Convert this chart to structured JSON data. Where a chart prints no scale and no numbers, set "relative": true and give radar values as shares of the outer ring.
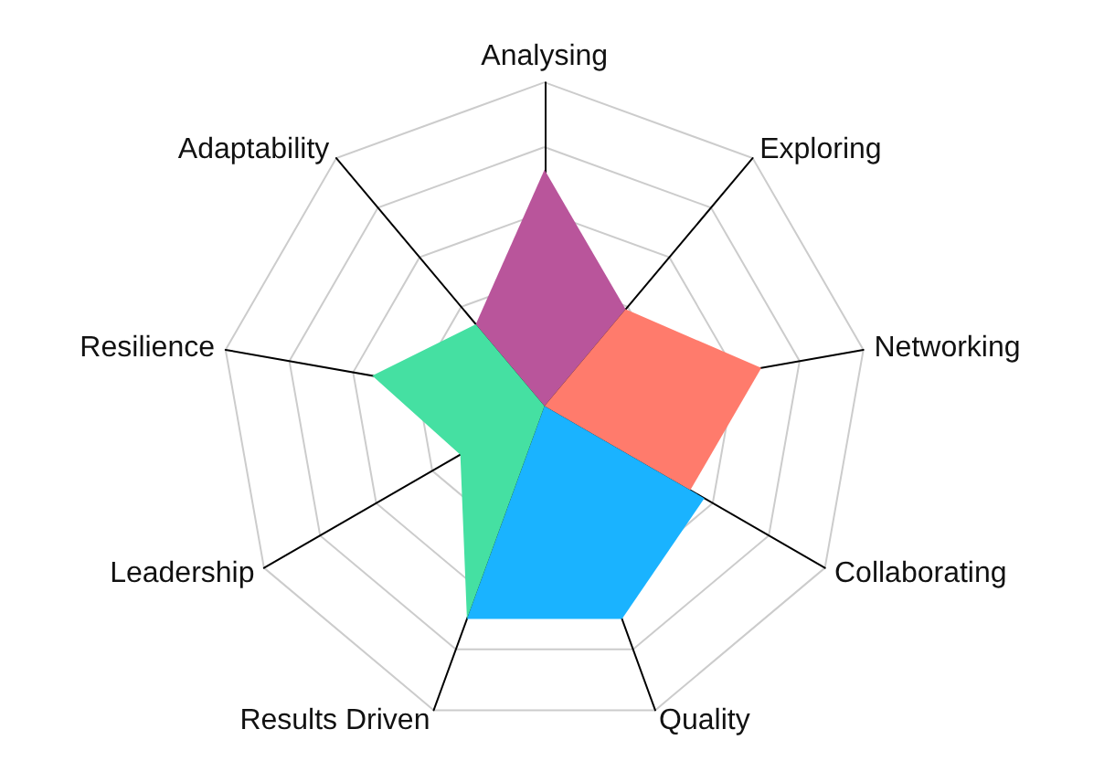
{
  "chart_data": {
    "type": "radar",
    "relative": true,
    "categories": [
      "Analysing",
      "Exploring",
      "Networking",
      "Collaborating",
      "Quality",
      "Results Driven",
      "Leadership",
      "Resilience",
      "Adaptability"
    ],
    "series": [
      {
        "color": "#b9559b",
        "values": [
          0.73,
          0.39,
          0,
          0,
          0,
          0,
          0,
          0,
          0.33
        ]
      },
      {
        "color": "#ff7b6c",
        "values": [
          0,
          0.39,
          0.68,
          0.52,
          0,
          0,
          0,
          0,
          0
        ]
      },
      {
        "color": "#1ab3ff",
        "values": [
          0,
          0,
          0,
          0.57,
          0.7,
          0.7,
          0,
          0,
          0
        ]
      },
      {
        "color": "#45e0a2",
        "values": [
          0,
          0,
          0,
          0,
          0,
          0.7,
          0.3,
          0.54,
          0.33
        ]
      }
    ]
  }
}
